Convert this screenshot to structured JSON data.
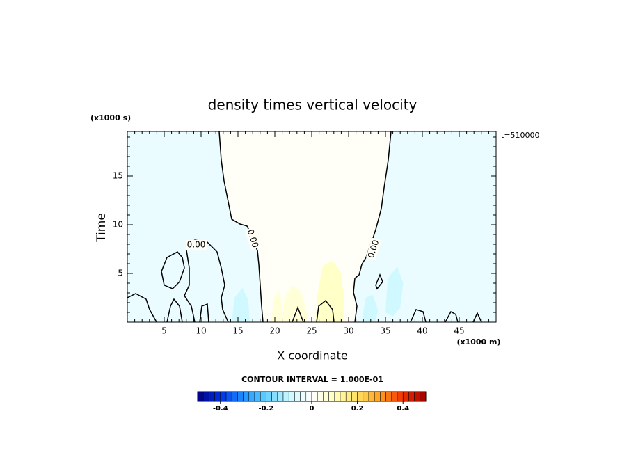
{
  "chart_data": {
    "type": "contour",
    "title": "density times vertical velocity",
    "x_label": "X coordinate",
    "y_label": "Time",
    "x_unit": "(x1000 m)",
    "y_unit": "(x1000 s)",
    "time_label": "t=510000",
    "contour_interval": "CONTOUR INTERVAL = 1.000E-01",
    "xlim": [
      0,
      50
    ],
    "ylim": [
      0,
      19.57
    ],
    "xticks": [
      5,
      10,
      15,
      20,
      25,
      30,
      35,
      40,
      45
    ],
    "yticks": [
      5,
      10,
      15
    ],
    "colormap": [
      "#000080",
      "#0030e0",
      "#1e90ff",
      "#60d0ff",
      "#c8f8ff",
      "#ffffff",
      "#ffffc0",
      "#ffe060",
      "#ffa020",
      "#f03000",
      "#a00000"
    ],
    "clim": [
      -0.5,
      0.5
    ],
    "cticks": [
      -0.4,
      -0.2,
      0,
      0.2,
      0.4
    ],
    "colorbar_bins": 40,
    "regions": [
      {
        "value": -0.04,
        "x": [
          0,
          50,
          50,
          0
        ],
        "y": [
          0,
          0,
          19.57,
          19.57
        ]
      },
      {
        "value": 0.01,
        "x": [
          12.45,
          12.74,
          13.11,
          13.68,
          14.15,
          15.28,
          16.23,
          16.7,
          17.17,
          17.64,
          17.83,
          18.02,
          18.21,
          18.4,
          30.85,
          31.13,
          30.66,
          30.85,
          31.42,
          31.79,
          32.36,
          33.21,
          33.68,
          34.43,
          34.81,
          35.38,
          35.75
        ],
        "y": [
          19.57,
          16.64,
          14.5,
          12.36,
          10.57,
          10.07,
          9.86,
          9.14,
          8.07,
          7.36,
          5.93,
          3.79,
          1.64,
          0,
          0,
          1.64,
          3.07,
          4.5,
          4.86,
          5.93,
          6.64,
          8.43,
          9.5,
          11.64,
          13.79,
          16.64,
          19.57
        ]
      },
      {
        "value": 0.09,
        "x": [
          25.5,
          25.8,
          26.5,
          27.8,
          28.9,
          29.4,
          29.2
        ],
        "y": [
          0,
          3,
          5.8,
          6.3,
          5.2,
          2.5,
          0
        ]
      },
      {
        "value": 0.06,
        "x": [
          21,
          21.3,
          22.3,
          23.5,
          24.2,
          24.5
        ],
        "y": [
          0,
          2.5,
          3.8,
          3.2,
          1.5,
          0
        ]
      },
      {
        "value": 0.06,
        "x": [
          19.5,
          19.9,
          20.7,
          21,
          20.8
        ],
        "y": [
          0,
          2.5,
          3.3,
          1,
          0
        ]
      },
      {
        "value": -0.09,
        "x": [
          14.2,
          14.5,
          15.6,
          16.4,
          16.6
        ],
        "y": [
          0,
          2.5,
          3.5,
          2.3,
          0
        ]
      },
      {
        "value": -0.09,
        "x": [
          35,
          35.3,
          36.6,
          37.4,
          37,
          36
        ],
        "y": [
          1,
          4.5,
          5.7,
          4,
          1.5,
          0.6
        ]
      },
      {
        "value": -0.09,
        "x": [
          31.8,
          32.3,
          33.3,
          34,
          33.6
        ],
        "y": [
          0,
          2.5,
          2.8,
          1.2,
          0
        ]
      }
    ],
    "contours": [
      {
        "level": 0,
        "x": [
          12.45,
          12.74,
          13.11,
          13.68,
          14.15,
          15.28,
          16.23,
          16.7,
          17.17,
          17.64,
          17.83,
          18.02,
          18.21,
          18.4,
          null,
          35.75,
          35.38,
          34.81,
          34.43,
          33.68,
          33.21,
          32.36,
          31.79,
          31.42,
          30.85,
          30.66,
          31.13,
          30.85,
          null,
          8.02,
          9.15,
          10.85,
          12.17,
          12.74,
          13.21,
          12.74,
          12.92,
          13.68,
          null,
          5.38,
          6.79,
          7.45,
          7.74,
          7.08,
          6.13,
          5.0,
          4.62,
          5.38,
          null,
          8.02,
          8.4,
          8.4,
          7.74,
          8.68,
          9.15,
          null,
          0,
          1.13,
          2.55,
          3.02,
          3.96,
          null,
          5.38,
          5.85,
          6.32,
          7.08,
          7.45,
          null,
          9.81,
          10.09,
          10.85,
          11.04,
          null,
          22.36,
          23.11,
          23.87,
          null,
          25.66,
          25.94,
          26.89,
          27.83,
          28.02,
          null,
          33.68,
          34.25,
          34.62,
          33.87,
          33.68,
          null,
          38.4,
          39.15,
          40.09,
          40.47,
          null,
          43.11,
          43.87,
          44.53,
          44.81,
          null,
          46.89,
          47.45,
          48.02
        ],
        "y": [
          19.57,
          16.64,
          14.5,
          12.36,
          10.57,
          10.07,
          9.86,
          9.14,
          8.07,
          7.36,
          5.93,
          3.79,
          1.64,
          0,
          null,
          19.57,
          16.64,
          13.79,
          11.64,
          9.5,
          8.43,
          6.64,
          5.93,
          4.86,
          4.5,
          3.07,
          1.64,
          0,
          null,
          7.93,
          8.43,
          8.21,
          7.21,
          5.57,
          3.79,
          2.5,
          1.29,
          0,
          null,
          6.64,
          7.21,
          6.64,
          5.57,
          4.14,
          3.43,
          3.79,
          5.21,
          6.64,
          null,
          7.36,
          5.57,
          3.79,
          2.71,
          1.64,
          0,
          null,
          2.5,
          2.93,
          2.36,
          1.29,
          0,
          null,
          0,
          1.64,
          2.36,
          1.64,
          0,
          null,
          0,
          1.64,
          1.86,
          0,
          null,
          0,
          1.5,
          0,
          null,
          0,
          1.64,
          2.21,
          1.29,
          0,
          null,
          3.79,
          4.86,
          4.14,
          3.43,
          3.79,
          null,
          0,
          1.29,
          1.07,
          0,
          null,
          0,
          1.07,
          0.79,
          0,
          null,
          0,
          0.93,
          0
        ]
      }
    ],
    "contour_labels": [
      {
        "text": "0.00",
        "x": 9.34,
        "y": 7.93
      },
      {
        "text": "0.00",
        "x": 16.98,
        "y": 8.57
      },
      {
        "text": "0.00",
        "x": 33.4,
        "y": 7.5
      }
    ]
  }
}
